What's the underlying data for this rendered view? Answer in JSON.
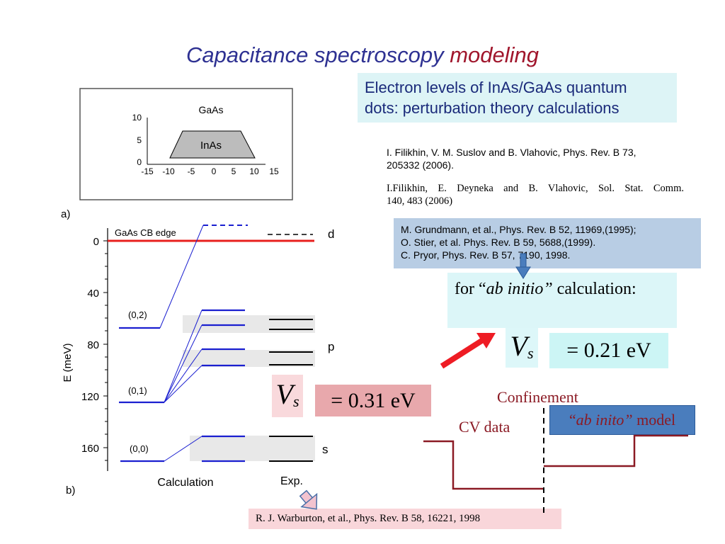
{
  "title": {
    "part1": "Capacitance spectroscopy",
    "part2": "modeling"
  },
  "description": {
    "line1": "Electron levels of InAs/GaAs quantum",
    "line2": "dots: perturbation theory calculations"
  },
  "references_top": {
    "ref1_line1": "I. Filikhin, V. M. Suslov and B. Vlahovic, Phys. Rev. B 73,",
    "ref1_line2": "205332 (2006).",
    "ref2_line1": "I.Filikhin, E. Deyneka and B. Vlahovic, Sol. Stat. Comm.",
    "ref2_line2": "140,  483 (2006)"
  },
  "references_box": {
    "line1": "M. Grundmann, et al., Phys. Rev. B 52, 11969,(1995);",
    "line2": "O. Stier, et al. Phys. Rev. B 59, 5688,(1999).",
    "line3": "C. Pryor, Phys. Rev. B 57, 7190, 1998."
  },
  "ab_initio": {
    "prefix": "for “",
    "term": "ab initio”",
    "suffix": " calculation:"
  },
  "vs": {
    "v": "V",
    "s": "s"
  },
  "vs_right_value": "= 0.21 eV",
  "vs_left_value": "= 0.31 eV",
  "confinement_label": "Confinement",
  "cv_data_label": "CV data",
  "model_box": {
    "open": "“",
    "term": "ab inito”",
    "suffix": " model"
  },
  "warburton_ref": "R. J. Warburton, et al.,  Phys. Rev. B 58, 16221, 1998",
  "figure_a": {
    "label": "a)",
    "top_label": "GaAs",
    "inner_label": "InAs",
    "y_ticks": [
      "10",
      "5",
      "0"
    ],
    "x_ticks": [
      "-15",
      "-10",
      "-5",
      "0",
      "5",
      "10",
      "15"
    ]
  },
  "figure_b": {
    "label": "b)",
    "y_axis_label": "E  (meV)",
    "y_ticks": [
      "0",
      "40",
      "80",
      "120",
      "160"
    ],
    "cb_edge_label": "GaAs CB edge",
    "state_labels": [
      "(0,2)",
      "(0,1)",
      "(0,0)"
    ],
    "level_labels": [
      "d",
      "p",
      "s"
    ],
    "x_labels": [
      "Calculation",
      "Exp."
    ]
  },
  "colors": {
    "title_blue": "#2e3192",
    "title_red": "#a0162c",
    "cb_edge_red": "#e8201e",
    "level_blue": "#1a1fd0",
    "curve_dark_red": "#8b1a24",
    "arrow_red": "#ee1c24",
    "model_box_blue": "#4a7dbd"
  },
  "icons": [
    "down-arrow-icon",
    "red-arrow-icon",
    "pink-down-arrow-icon"
  ]
}
